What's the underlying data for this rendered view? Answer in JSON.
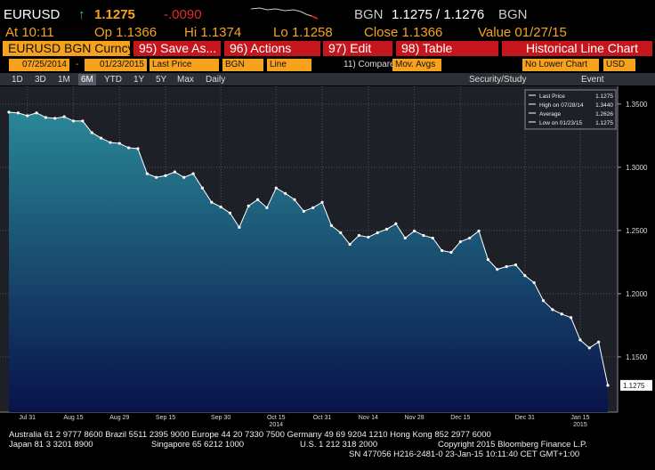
{
  "header": {
    "ticker": "EURUSD",
    "arrow": "↑",
    "last": "1.1275",
    "change": "-.0090",
    "source": "BGN",
    "bid_ask": "1.1275 / 1.1276",
    "source2": "BGN",
    "at": "At 10:11",
    "open": "Op 1.1366",
    "high": "Hi 1.1374",
    "low": "Lo 1.1258",
    "close": "Close 1.1366",
    "value": "Value 01/27/15"
  },
  "toolbar": {
    "security": "EURUSD BGN Curncy",
    "buttons": [
      "95) Save As...",
      "96) Actions",
      "97) Edit",
      "98) Table"
    ],
    "chart_name": "Historical Line Chart"
  },
  "settings": {
    "start": "07/25/2014",
    "dash": "-",
    "end": "01/23/2015",
    "field": "Last Price",
    "source": "BGN",
    "style": "Line",
    "compare": "11) Compare",
    "studies": "Mov. Avgs",
    "lower": "No Lower Chart",
    "currency": "USD"
  },
  "periods": {
    "items": [
      "1D",
      "3D",
      "1M",
      "6M",
      "YTD",
      "1Y",
      "5Y",
      "Max"
    ],
    "selected": "6M",
    "frequency": "Daily",
    "study": "Security/Study",
    "event": "Event"
  },
  "legend_box": [
    {
      "label": "Last Price",
      "value": "1.1275"
    },
    {
      "label": "High on 07/28/14",
      "value": "1.3440"
    },
    {
      "label": "Average",
      "value": "1.2626"
    },
    {
      "label": "Low on 01/23/15",
      "value": "1.1275"
    }
  ],
  "chart_data": {
    "type": "area",
    "categories": [
      null,
      null,
      "Jul 31",
      null,
      null,
      null,
      null,
      "Aug 15",
      null,
      null,
      null,
      null,
      "Aug 29",
      null,
      null,
      null,
      null,
      "Sep 15",
      null,
      null,
      null,
      null,
      null,
      "Sep 30",
      null,
      null,
      null,
      null,
      null,
      "Oct 15",
      null,
      null,
      null,
      null,
      "Oct 31",
      null,
      null,
      null,
      null,
      "Nov 14",
      null,
      null,
      null,
      null,
      "Nov 28",
      null,
      null,
      null,
      null,
      "Dec 15",
      null,
      null,
      null,
      null,
      null,
      null,
      "Dec 31",
      null,
      null,
      null,
      null,
      null,
      "Jan 15",
      null,
      null,
      null
    ],
    "year_labels": [
      "2014",
      "2015"
    ],
    "series": [
      {
        "name": "Last Price",
        "color": "#ffffff",
        "values": [
          1.3436,
          1.343,
          1.3408,
          1.343,
          1.3394,
          1.3387,
          1.34,
          1.3366,
          1.3366,
          1.3274,
          1.3231,
          1.3196,
          1.3189,
          1.3154,
          1.3147,
          1.2949,
          1.292,
          1.2934,
          1.2963,
          1.292,
          1.2949,
          1.2836,
          1.2723,
          1.2686,
          1.2638,
          1.2525,
          1.2694,
          1.2744,
          1.268,
          1.2836,
          1.2793,
          1.2744,
          1.2652,
          1.268,
          1.2723,
          1.2539,
          1.2482,
          1.239,
          1.2461,
          1.2447,
          1.2482,
          1.251,
          1.2553,
          1.244,
          1.2496,
          1.2461,
          1.244,
          1.2341,
          1.2327,
          1.2411,
          1.244,
          1.2496,
          1.227,
          1.2192,
          1.2214,
          1.2228,
          1.2143,
          1.2087,
          1.1945,
          1.1874,
          1.1839,
          1.1811,
          1.1634,
          1.1571,
          1.1618,
          1.1275
        ]
      }
    ],
    "last_label": "1.1275",
    "ylim": [
      1.107,
      1.364
    ],
    "yticks": [
      {
        "value": 1.15,
        "label": "1.1500"
      },
      {
        "value": 1.2,
        "label": "1.2000"
      },
      {
        "value": 1.25,
        "label": "1.2500"
      },
      {
        "value": 1.3,
        "label": "1.3000"
      },
      {
        "value": 1.35,
        "label": "1.3500"
      }
    ],
    "grid": true
  },
  "footer": {
    "line1": "Australia 61 2 9777 8600 Brazil 5511 2395 9000 Europe 44 20 7330 7500 Germany 49 69 9204 1210 Hong Kong 852 2977 6000",
    "line2": [
      "Japan 81 3 3201 8900",
      "Singapore 65 6212 1000",
      "U.S. 1 212 318 2000",
      "Copyright 2015 Bloomberg Finance L.P."
    ],
    "line3": "SN 477056 H216-2481-0 23-Jan-15 10:11:40 CET  GMT+1:00"
  }
}
